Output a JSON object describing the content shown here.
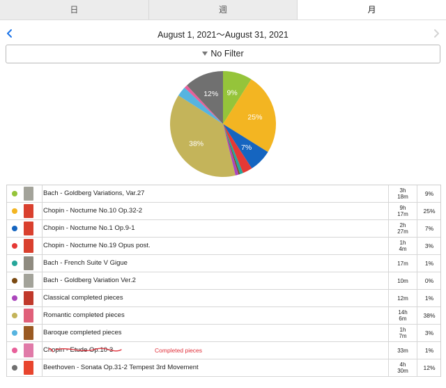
{
  "tabs": [
    {
      "label": "日",
      "active": false
    },
    {
      "label": "週",
      "active": false
    },
    {
      "label": "月",
      "active": true
    }
  ],
  "header": {
    "date_range": "August 1, 2021〜August 31, 2021",
    "prev_icon": "chevron-left-icon",
    "next_icon": "chevron-right-icon"
  },
  "filter": {
    "label": "No Filter",
    "icon": "triangle-down-icon"
  },
  "chart_data": {
    "type": "pie",
    "slices": [
      {
        "label": "Bach - Goldberg Variations, Var.27",
        "value": 9,
        "color": "#95c43a",
        "data_label": "9%"
      },
      {
        "label": "Chopin - Nocturne No.10 Op.32-2",
        "value": 25,
        "color": "#f3b522",
        "data_label": "25%"
      },
      {
        "label": "Chopin - Nocturne No.1 Op.9-1",
        "value": 7,
        "color": "#1565c0",
        "data_label": "7%"
      },
      {
        "label": "Chopin - Nocturne No.19 Opus post.",
        "value": 3,
        "color": "#e53935",
        "data_label": ""
      },
      {
        "label": "Bach - French Suite V Gigue",
        "value": 1,
        "color": "#26a69a",
        "data_label": ""
      },
      {
        "label": "Bach - Goldberg Variation Ver.2",
        "value": 0.4,
        "color": "#7b4a12",
        "data_label": ""
      },
      {
        "label": "Classical completed pieces",
        "value": 1,
        "color": "#ab47bc",
        "data_label": ""
      },
      {
        "label": "Romantic completed pieces",
        "value": 38,
        "color": "#c4b45a",
        "data_label": "38%"
      },
      {
        "label": "Baroque completed pieces",
        "value": 3,
        "color": "#56b4e0",
        "data_label": ""
      },
      {
        "label": "Chopin - Etude Op.10-3",
        "value": 1,
        "color": "#e8609a",
        "data_label": ""
      },
      {
        "label": "Beethoven - Sonata Op.31-2 Tempest 3rd Movement",
        "value": 12,
        "color": "#707070",
        "data_label": "12%"
      }
    ]
  },
  "rows": [
    {
      "title": "Bach - Goldberg Variations, Var.27",
      "time1": "3h",
      "time2": "18m",
      "pct": "9%",
      "color": "#95c43a",
      "thumb": "#a3a39a"
    },
    {
      "title": "Chopin - Nocturne No.10 Op.32-2",
      "time1": "9h",
      "time2": "17m",
      "pct": "25%",
      "color": "#f3b522",
      "thumb": "#d9402e"
    },
    {
      "title": "Chopin - Nocturne No.1 Op.9-1",
      "time1": "2h",
      "time2": "27m",
      "pct": "7%",
      "color": "#1565c0",
      "thumb": "#d9402e"
    },
    {
      "title": "Chopin - Nocturne No.19 Opus post.",
      "time1": "1h",
      "time2": "4m",
      "pct": "3%",
      "color": "#e53935",
      "thumb": "#d9402e"
    },
    {
      "title": "Bach - French Suite V Gigue",
      "time1": "17m",
      "time2": "",
      "pct": "1%",
      "color": "#26a69a",
      "thumb": "#8f8b80"
    },
    {
      "title": "Bach - Goldberg Variation Ver.2",
      "time1": "10m",
      "time2": "",
      "pct": "0%",
      "color": "#7b4a12",
      "thumb": "#a3a39a"
    },
    {
      "title": "Classical completed pieces",
      "time1": "12m",
      "time2": "",
      "pct": "1%",
      "color": "#ab47bc",
      "thumb": "#c0392b"
    },
    {
      "title": "Romantic completed pieces",
      "time1": "14h",
      "time2": "6m",
      "pct": "38%",
      "color": "#c4b45a",
      "thumb": "#e0607a"
    },
    {
      "title": "Baroque completed pieces",
      "time1": "1h",
      "time2": "7m",
      "pct": "3%",
      "color": "#56b4e0",
      "thumb": "#9a5a22"
    },
    {
      "title": "Chopin - Etude Op.10-3",
      "time1": "33m",
      "time2": "",
      "pct": "1%",
      "color": "#e8609a",
      "thumb": "#e07aa8",
      "annotation": "Completed pieces"
    },
    {
      "title": "Beethoven - Sonata Op.31-2 Tempest 3rd Movement",
      "time1": "4h",
      "time2": "30m",
      "pct": "12%",
      "color": "#707070",
      "thumb": "#e8452e"
    }
  ]
}
